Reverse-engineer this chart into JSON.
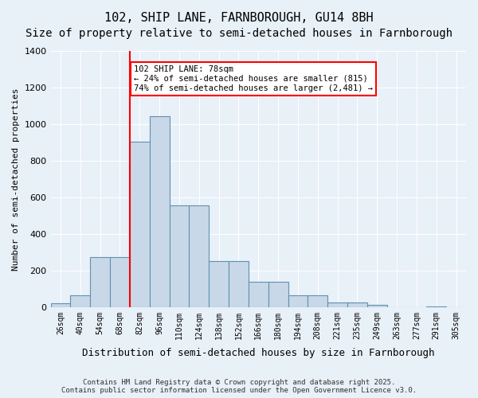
{
  "title1": "102, SHIP LANE, FARNBOROUGH, GU14 8BH",
  "title2": "Size of property relative to semi-detached houses in Farnborough",
  "xlabel": "Distribution of semi-detached houses by size in Farnborough",
  "ylabel": "Number of semi-detached properties",
  "categories": [
    "26sqm",
    "40sqm",
    "54sqm",
    "68sqm",
    "82sqm",
    "96sqm",
    "110sqm",
    "124sqm",
    "138sqm",
    "152sqm",
    "166sqm",
    "180sqm",
    "194sqm",
    "208sqm",
    "221sqm",
    "235sqm",
    "249sqm",
    "263sqm",
    "277sqm",
    "291sqm",
    "305sqm"
  ],
  "values": [
    20,
    65,
    275,
    275,
    905,
    1045,
    555,
    555,
    250,
    250,
    140,
    140,
    65,
    65,
    25,
    25,
    10,
    0,
    0,
    5,
    0
  ],
  "bar_color": "#c8d8e8",
  "bar_edge_color": "#6090b0",
  "vline_x": 4.5,
  "vline_color": "red",
  "annotation_text": "102 SHIP LANE: 78sqm\n← 24% of semi-detached houses are smaller (815)\n74% of semi-detached houses are larger (2,481) →",
  "annotation_box_color": "red",
  "background_color": "#e8f0f8",
  "ylim": [
    0,
    1400
  ],
  "yticks": [
    0,
    200,
    400,
    600,
    800,
    1000,
    1200,
    1400
  ],
  "footnote": "Contains HM Land Registry data © Crown copyright and database right 2025.\nContains public sector information licensed under the Open Government Licence v3.0.",
  "title_fontsize": 11,
  "subtitle_fontsize": 10
}
